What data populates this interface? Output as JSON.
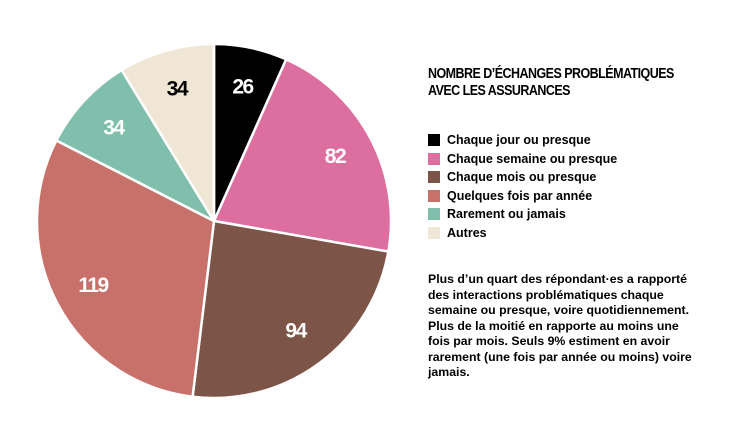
{
  "chart_data": {
    "type": "pie",
    "title": "NOMBRE D’ÉCHANGES PROBLÉMATIQUES AVEC LES ASSURANCES",
    "categories": [
      "Chaque jour ou presque",
      "Chaque semaine ou presque",
      "Chaque mois ou presque",
      "Quelques fois par année",
      "Rarement ou jamais",
      "Autres"
    ],
    "values": [
      26,
      82,
      94,
      119,
      34,
      34
    ],
    "colors": [
      "#000000",
      "#dd6fa0",
      "#7c5448",
      "#c8716a",
      "#7fbfab",
      "#efe6d5"
    ],
    "label_colors": [
      "#ffffff",
      "#ffffff",
      "#ffffff",
      "#ffffff",
      "#ffffff",
      "#000000"
    ],
    "start": "top, clockwise",
    "legend_position": "right"
  },
  "description": "Plus d’un quart des répondant·es a rapporté des interactions problématiques chaque semaine ou presque, voire quotidiennement. Plus de la moitié en rapporte au moins une fois par mois. Seuls 9% estiment en avoir rarement (une fois par année ou moins) voire jamais."
}
